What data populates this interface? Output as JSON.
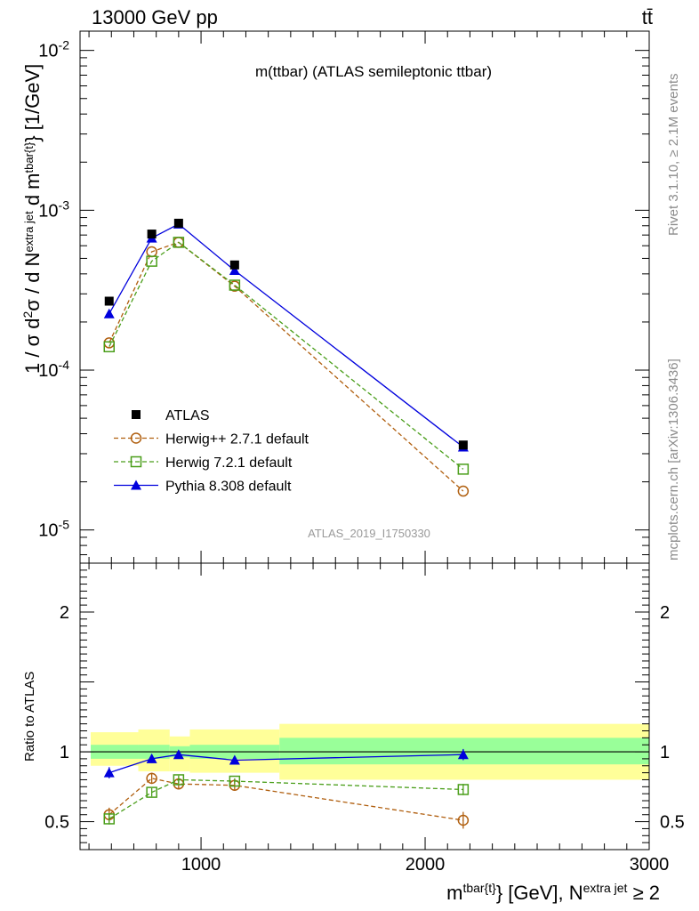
{
  "header": {
    "left": "13000 GeV pp",
    "right": "tt̄"
  },
  "side": {
    "rivet": "Rivet 3.1.10, ≥ 2.1M events",
    "mcplots": "mcplots.cern.ch [arXiv:1306.3436]"
  },
  "chart_data": {
    "type": "line",
    "title": "m(ttbar) (ATLAS semileptonic ttbar)",
    "watermark": "ATLAS_2019_I1750330",
    "xlabel": "m^{tbar{t}} [GeV], N^{extra jet} ≥ 2",
    "xlabel_parts": {
      "base": "m",
      "sup": "tbar{t}",
      "mid": "} [GeV], N",
      "sup2": "extra jet",
      "tail": " ≥ 2"
    },
    "xlim": [
      460,
      3000
    ],
    "xticks": [
      "1000",
      "2000",
      "3000"
    ],
    "xtick_values": [
      1000,
      2000,
      3000
    ],
    "top_panel": {
      "ylabel": "1 / σ d²σ / d N^{extra jet} d m^{tbar{t}} [1/GeV]",
      "ylabel_parts": {
        "a": "1 / σ d",
        "sup1": "2",
        "b": "σ / d N",
        "sup2": "extra jet",
        "c": " d m",
        "sup3": "tbar{t}",
        "d": "} [1/GeV]"
      },
      "yscale": "log",
      "ylim": [
        6.2e-06,
        0.0132
      ],
      "ytick_labels": [
        {
          "base": "10",
          "exp": "-5",
          "value": 1e-05
        },
        {
          "base": "10",
          "exp": "-4",
          "value": 0.0001
        },
        {
          "base": "10",
          "exp": "-3",
          "value": 0.001
        },
        {
          "base": "10",
          "exp": "-2",
          "value": 0.01
        }
      ]
    },
    "ratio_panel": {
      "ylabel": "Ratio to ATLAS",
      "ylim": [
        0.3,
        2.35
      ],
      "yticks": [
        "0.5",
        "1",
        "2"
      ],
      "ytick_values": [
        0.5,
        1,
        2
      ],
      "bands": [
        {
          "x0": 480,
          "x1": 720,
          "inner": [
            0.95,
            1.05
          ],
          "outer": [
            0.9,
            1.14
          ]
        },
        {
          "x0": 720,
          "x1": 860,
          "inner": [
            0.95,
            1.05
          ],
          "outer": [
            0.86,
            1.16
          ]
        },
        {
          "x0": 860,
          "x1": 950,
          "inner": [
            0.96,
            1.04
          ],
          "outer": [
            0.86,
            1.11
          ]
        },
        {
          "x0": 950,
          "x1": 1350,
          "inner": [
            0.95,
            1.05
          ],
          "outer": [
            0.85,
            1.16
          ]
        },
        {
          "x0": 1350,
          "x1": 3000,
          "inner": [
            0.91,
            1.1
          ],
          "outer": [
            0.8,
            1.2
          ]
        }
      ]
    },
    "series": [
      {
        "name": "ATLAS",
        "marker": "square",
        "color": "#000000",
        "dashed": false,
        "line": false,
        "x": [
          590,
          780,
          900,
          1150,
          2170
        ],
        "y": [
          0.00027,
          0.00071,
          0.00083,
          0.000455,
          3.4e-05
        ],
        "ratio": [
          1,
          1,
          1,
          1,
          1
        ],
        "ratio_err": [
          0,
          0,
          0,
          0,
          0
        ]
      },
      {
        "name": "Herwig++ 2.7.1 default",
        "marker": "circle",
        "color": "#b05f0f",
        "dashed": true,
        "line": true,
        "x": [
          590,
          780,
          900,
          1150,
          2170
        ],
        "y": [
          0.000148,
          0.00055,
          0.00063,
          0.000335,
          1.75e-05
        ],
        "ratio": [
          0.55,
          0.81,
          0.77,
          0.76,
          0.51
        ],
        "ratio_err": [
          0.05,
          0.04,
          0.04,
          0.03,
          0.06
        ]
      },
      {
        "name": "Herwig 7.2.1 default",
        "marker": "open-square",
        "color": "#4a9e1a",
        "dashed": true,
        "line": true,
        "x": [
          590,
          780,
          900,
          1150,
          2170
        ],
        "y": [
          0.00014,
          0.00048,
          0.00063,
          0.00034,
          2.4e-05
        ],
        "ratio": [
          0.52,
          0.71,
          0.8,
          0.79,
          0.73
        ],
        "ratio_err": [
          0.04,
          0.03,
          0.03,
          0.02,
          0.04
        ]
      },
      {
        "name": "Pythia 8.308 default",
        "marker": "triangle",
        "color": "#0000dd",
        "dashed": false,
        "line": true,
        "x": [
          590,
          780,
          900,
          1150,
          2170
        ],
        "y": [
          0.000225,
          0.00067,
          0.00082,
          0.00042,
          3.3e-05
        ],
        "ratio": [
          0.85,
          0.95,
          0.98,
          0.94,
          0.98
        ],
        "ratio_err": [
          0.04,
          0.03,
          0.03,
          0.02,
          0.04
        ]
      }
    ]
  },
  "colors": {
    "band_inner": "#99ff99",
    "band_outer": "#ffff99"
  }
}
